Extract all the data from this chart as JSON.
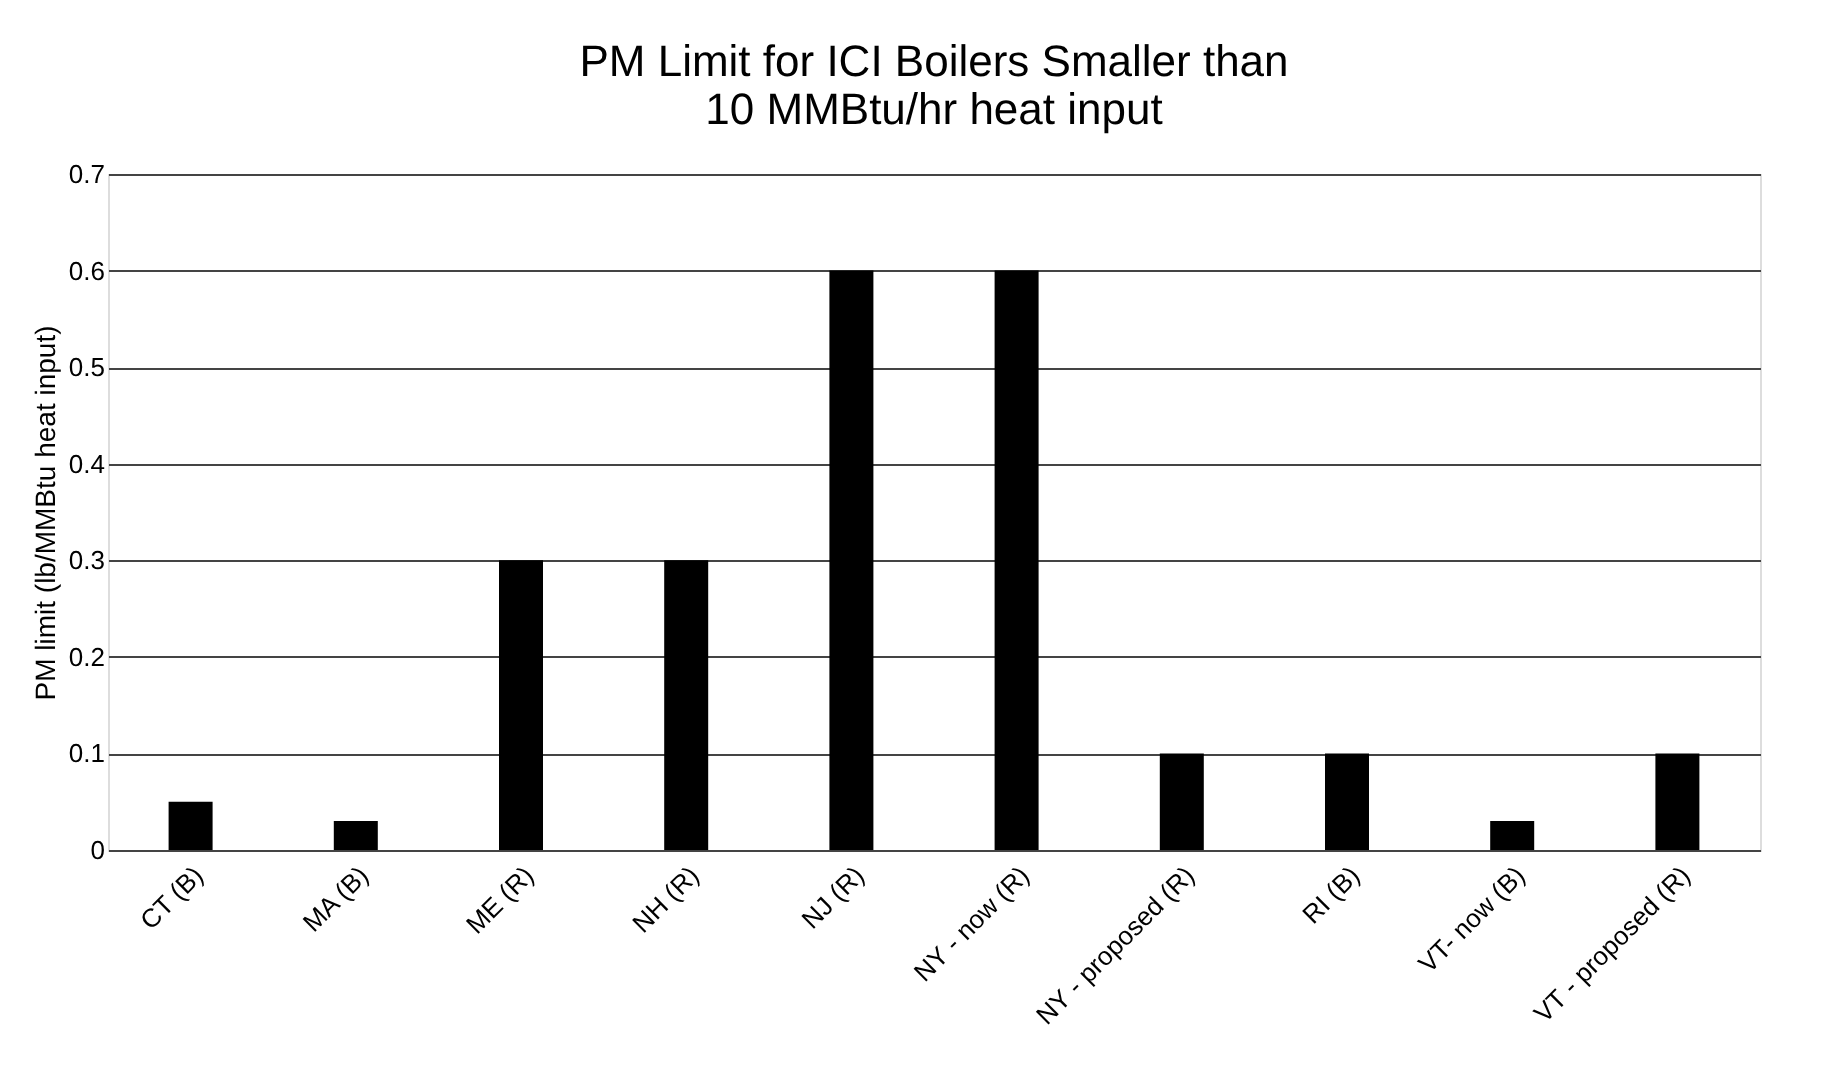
{
  "chart_data": {
    "type": "bar",
    "title": [
      "PM Limit for ICI Boilers Smaller than",
      "10 MMBtu/hr heat input"
    ],
    "ylabel": "PM limit (lb/MMBtu heat input)",
    "categories": [
      "CT (B)",
      "MA (B)",
      "ME (R)",
      "NH (R)",
      "NJ (R)",
      "NY - now (R)",
      "NY - proposed (R)",
      "RI (B)",
      "VT- now (B)",
      "VT - proposed (R)"
    ],
    "values": [
      0.05,
      0.03,
      0.3,
      0.3,
      0.6,
      0.6,
      0.1,
      0.1,
      0.03,
      0.1
    ],
    "color": "#000000",
    "ylim": [
      0,
      0.7
    ],
    "yticks": [
      0,
      0.1,
      0.2,
      0.3,
      0.4,
      0.5,
      0.6,
      0.7
    ],
    "grid": "y"
  }
}
